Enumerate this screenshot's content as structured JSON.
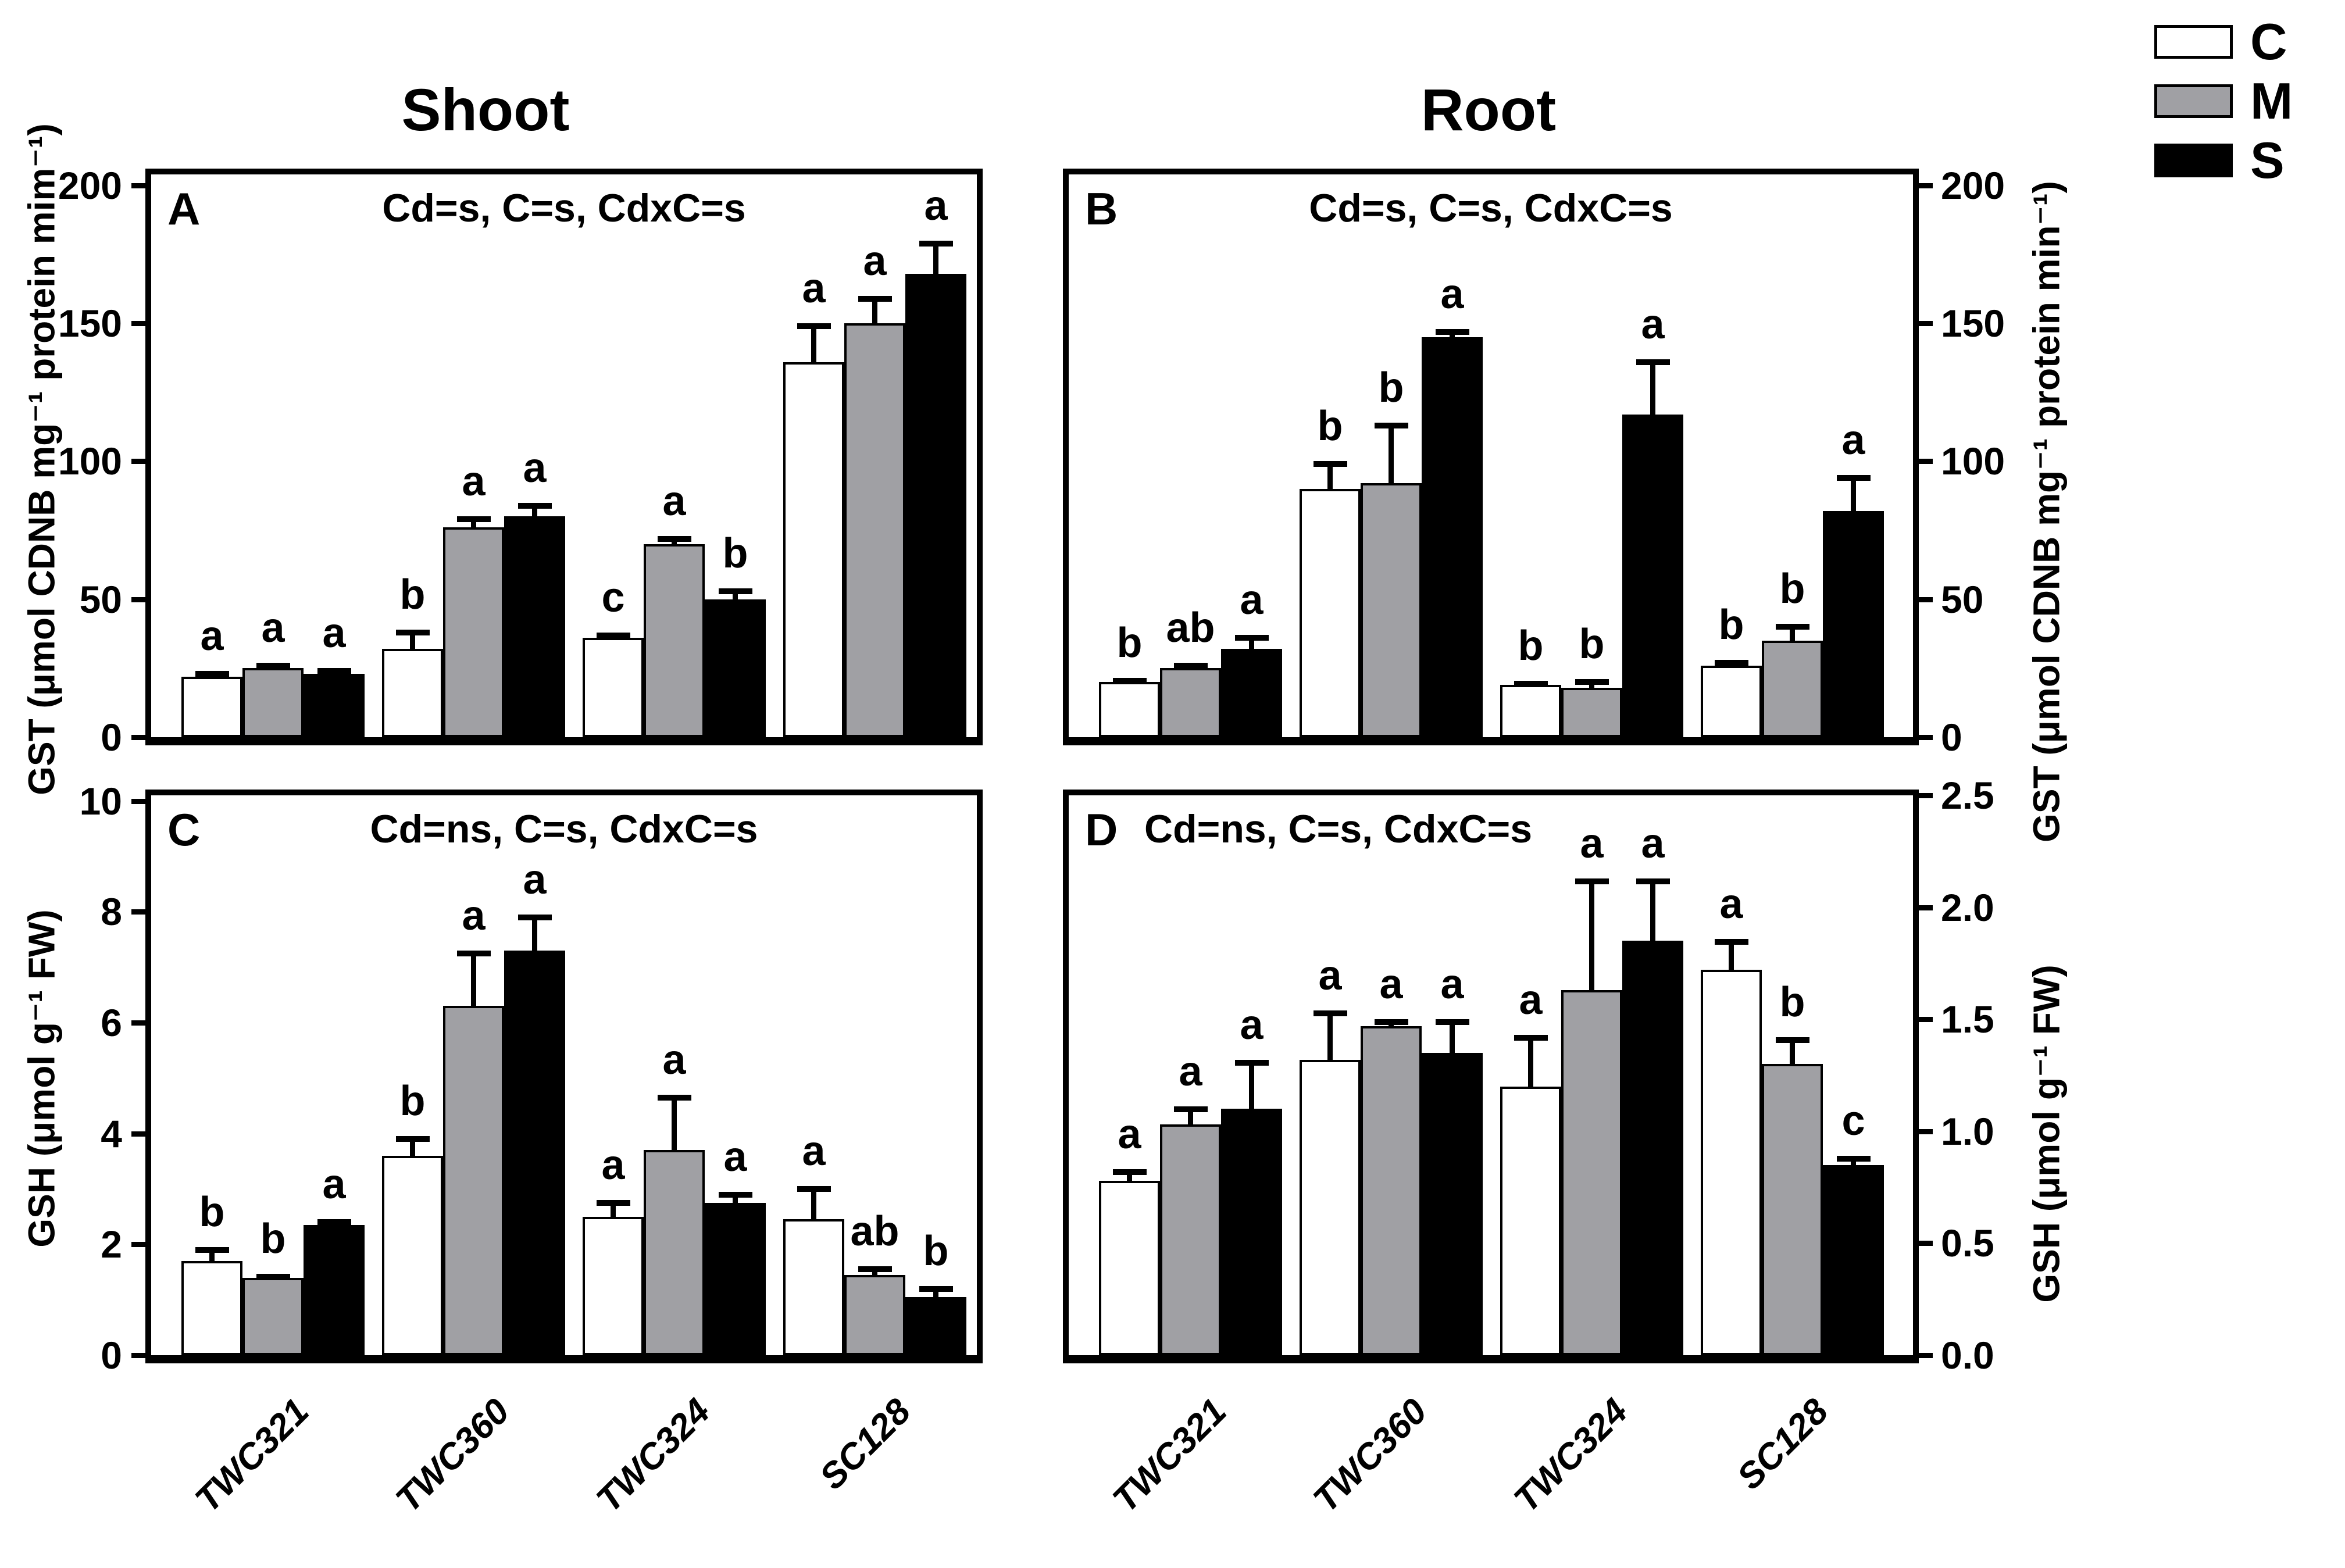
{
  "figure": {
    "background": "#ffffff",
    "bar_outline": "#000000"
  },
  "column_titles": [
    {
      "id": "shoot",
      "text": "Shoot"
    },
    {
      "id": "root",
      "text": "Root"
    }
  ],
  "legend": {
    "items": [
      {
        "label": "C",
        "color": "#ffffff"
      },
      {
        "label": "M",
        "color": "#a0a0a4"
      },
      {
        "label": "S",
        "color": "#000000"
      }
    ]
  },
  "x_categories": [
    "TWC321",
    "TWC360",
    "TWC324",
    "SC128"
  ],
  "chart_data": [
    {
      "id": "A",
      "panel_label": "A",
      "type": "bar",
      "column": "Shoot",
      "stats": "Cd=s, C=s, CdxC=s",
      "ylabel": "GST (μmol CDNB mg⁻¹ protein mim⁻¹)",
      "axis_side": "left",
      "ylim": [
        0,
        200
      ],
      "yticks": [
        0,
        50,
        100,
        150,
        200
      ],
      "ytick_decimals": 0,
      "categories": [
        "TWC321",
        "TWC360",
        "TWC324",
        "SC128"
      ],
      "series": [
        {
          "name": "C",
          "fill": "#ffffff",
          "values": [
            22,
            32,
            36,
            136
          ],
          "errors": [
            2,
            7,
            2,
            14
          ],
          "letters": [
            "a",
            "b",
            "c",
            "a"
          ]
        },
        {
          "name": "M",
          "fill": "#a0a0a4",
          "values": [
            25,
            76,
            70,
            150
          ],
          "errors": [
            2,
            4,
            3,
            10
          ],
          "letters": [
            "a",
            "a",
            "a",
            "a"
          ]
        },
        {
          "name": "S",
          "fill": "#000000",
          "values": [
            23,
            80,
            50,
            168
          ],
          "errors": [
            2,
            5,
            4,
            12
          ],
          "letters": [
            "a",
            "a",
            "b",
            "a"
          ]
        }
      ]
    },
    {
      "id": "B",
      "panel_label": "B",
      "type": "bar",
      "column": "Root",
      "stats": "Cd=s, C=s, CdxC=s",
      "ylabel": "GST (μmol CDNB mg⁻¹ protein min⁻¹)",
      "axis_side": "right",
      "ylim": [
        0,
        200
      ],
      "yticks": [
        0,
        50,
        100,
        150,
        200
      ],
      "ytick_decimals": 0,
      "categories": [
        "TWC321",
        "TWC360",
        "TWC324",
        "SC128"
      ],
      "series": [
        {
          "name": "C",
          "fill": "#ffffff",
          "values": [
            20,
            90,
            19,
            26
          ],
          "errors": [
            1.5,
            10,
            1.5,
            2
          ],
          "letters": [
            "b",
            "b",
            "b",
            "b"
          ]
        },
        {
          "name": "M",
          "fill": "#a0a0a4",
          "values": [
            25,
            92,
            18,
            35
          ],
          "errors": [
            2,
            22,
            3,
            6
          ],
          "letters": [
            "ab",
            "b",
            "b",
            "b"
          ]
        },
        {
          "name": "S",
          "fill": "#000000",
          "values": [
            32,
            145,
            117,
            82
          ],
          "errors": [
            5,
            3,
            20,
            13
          ],
          "letters": [
            "a",
            "a",
            "a",
            "a"
          ]
        }
      ]
    },
    {
      "id": "C",
      "panel_label": "C",
      "type": "bar",
      "column": "Shoot",
      "stats": "Cd=ns, C=s, CdxC=s",
      "ylabel": "GSH (μmol g⁻¹ FW)",
      "axis_side": "left",
      "ylim": [
        0,
        10
      ],
      "yticks": [
        0,
        2,
        4,
        6,
        8,
        10
      ],
      "ytick_decimals": 0,
      "categories": [
        "TWC321",
        "TWC360",
        "TWC324",
        "SC128"
      ],
      "series": [
        {
          "name": "C",
          "fill": "#ffffff",
          "values": [
            1.7,
            3.6,
            2.5,
            2.45
          ],
          "errors": [
            0.25,
            0.35,
            0.3,
            0.6
          ],
          "letters": [
            "b",
            "b",
            "a",
            "a"
          ]
        },
        {
          "name": "M",
          "fill": "#a0a0a4",
          "values": [
            1.4,
            6.3,
            3.7,
            1.45
          ],
          "errors": [
            0.07,
            1.0,
            1.0,
            0.15
          ],
          "letters": [
            "b",
            "a",
            "a",
            "ab"
          ]
        },
        {
          "name": "S",
          "fill": "#000000",
          "values": [
            2.35,
            7.3,
            2.75,
            1.05
          ],
          "errors": [
            0.1,
            0.65,
            0.2,
            0.2
          ],
          "letters": [
            "a",
            "a",
            "a",
            "b"
          ]
        }
      ]
    },
    {
      "id": "D",
      "panel_label": "D",
      "type": "bar",
      "column": "Root",
      "stats": "Cd=ns, C=s, CdxC=s",
      "ylabel": "GSH (μmol g⁻¹ FW)",
      "axis_side": "right",
      "ylim": [
        0,
        2.5
      ],
      "yticks": [
        0.0,
        0.5,
        1.0,
        1.5,
        2.0,
        2.5
      ],
      "ytick_decimals": 1,
      "categories": [
        "TWC321",
        "TWC360",
        "TWC324",
        "SC128"
      ],
      "series": [
        {
          "name": "C",
          "fill": "#ffffff",
          "values": [
            0.78,
            1.32,
            1.2,
            1.72
          ],
          "errors": [
            0.05,
            0.22,
            0.23,
            0.14
          ],
          "letters": [
            "a",
            "a",
            "a",
            "a"
          ]
        },
        {
          "name": "M",
          "fill": "#a0a0a4",
          "values": [
            1.03,
            1.47,
            1.63,
            1.3
          ],
          "errors": [
            0.08,
            0.03,
            0.5,
            0.12
          ],
          "letters": [
            "a",
            "a",
            "a",
            "b"
          ]
        },
        {
          "name": "S",
          "fill": "#000000",
          "values": [
            1.1,
            1.35,
            1.85,
            0.85
          ],
          "errors": [
            0.22,
            0.15,
            0.28,
            0.04
          ],
          "letters": [
            "a",
            "a",
            "a",
            "c"
          ]
        }
      ]
    }
  ]
}
